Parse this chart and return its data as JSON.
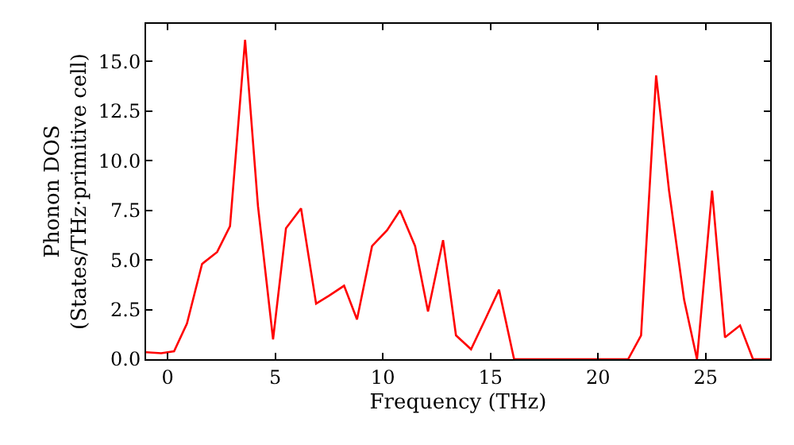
{
  "chart_data": {
    "type": "line",
    "xlabel": "Frequency (THz)",
    "ylabel": "Phonon DOS\n(States/THz·primitive cell)",
    "x": [
      -1,
      -0.3,
      0.3,
      0.9,
      1.6,
      2.3,
      2.9,
      3.6,
      4.2,
      4.9,
      5.5,
      6.2,
      6.9,
      7.5,
      8.2,
      8.8,
      9.5,
      10.2,
      10.8,
      11.5,
      12.1,
      12.8,
      13.4,
      14.1,
      14.8,
      15.4,
      16.1,
      21.4,
      22.0,
      22.7,
      23.3,
      24.0,
      24.6,
      25.3,
      25.9,
      26.6,
      27.2,
      28
    ],
    "series": [
      {
        "color": "#ff0000",
        "values": [
          0.35,
          0.3,
          0.4,
          1.8,
          4.8,
          5.4,
          6.7,
          16.1,
          7.7,
          1.0,
          6.6,
          7.6,
          2.8,
          3.2,
          3.7,
          2.0,
          5.7,
          6.5,
          7.5,
          5.7,
          2.4,
          6.0,
          1.2,
          0.5,
          2.1,
          3.5,
          0,
          0,
          1.2,
          14.3,
          8.5,
          3.0,
          0,
          8.5,
          1.1,
          1.7,
          0,
          0
        ]
      }
    ],
    "xlim": [
      -1,
      28
    ],
    "xticks": [
      0,
      5,
      10,
      15,
      20,
      25
    ],
    "ylim": [
      0,
      16.9
    ],
    "yticks": [
      {
        "value": 0,
        "label": "0.0"
      },
      {
        "value": 2.5,
        "label": "2.5"
      },
      {
        "value": 5,
        "label": "5.0"
      },
      {
        "value": 7.5,
        "label": "7.5"
      },
      {
        "value": 10,
        "label": "10.0"
      },
      {
        "value": 12.5,
        "label": "12.5"
      },
      {
        "value": 15,
        "label": "15.0"
      }
    ],
    "legend": false,
    "marker": "none",
    "line_style": "solid"
  }
}
